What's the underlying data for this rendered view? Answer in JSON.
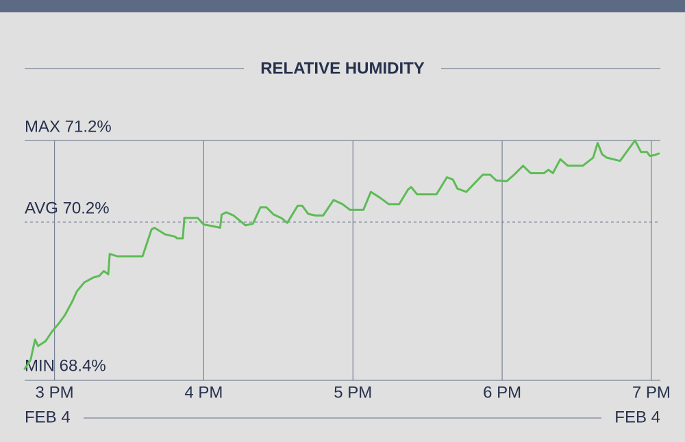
{
  "chart_data": {
    "type": "line",
    "title": "RELATIVE HUMIDITY",
    "x": [
      14.8,
      14.84,
      14.87,
      14.89,
      14.94,
      14.98,
      15.03,
      15.07,
      15.12,
      15.15,
      15.2,
      15.26,
      15.3,
      15.33,
      15.36,
      15.37,
      15.42,
      15.59,
      15.65,
      15.67,
      15.74,
      15.81,
      15.82,
      15.86,
      15.87,
      15.96,
      16.0,
      16.06,
      16.11,
      16.12,
      16.15,
      16.2,
      16.28,
      16.33,
      16.38,
      16.42,
      16.47,
      16.52,
      16.56,
      16.63,
      16.66,
      16.7,
      16.75,
      16.8,
      16.87,
      16.93,
      16.98,
      17.07,
      17.12,
      17.18,
      17.24,
      17.31,
      17.37,
      17.39,
      17.43,
      17.56,
      17.63,
      17.67,
      17.7,
      17.76,
      17.87,
      17.92,
      17.96,
      18.03,
      18.08,
      18.14,
      18.19,
      18.28,
      18.31,
      18.34,
      18.39,
      18.44,
      18.54,
      18.61,
      18.64,
      18.67,
      18.7,
      18.79,
      18.89,
      18.93,
      18.97,
      18.99,
      19.02,
      19.05
    ],
    "values": [
      68.4,
      68.51,
      68.76,
      68.68,
      68.74,
      68.85,
      68.96,
      69.06,
      69.23,
      69.35,
      69.46,
      69.52,
      69.54,
      69.6,
      69.56,
      69.81,
      69.78,
      69.78,
      70.11,
      70.13,
      70.05,
      70.02,
      70.0,
      70.0,
      70.25,
      70.25,
      70.17,
      70.15,
      70.13,
      70.29,
      70.32,
      70.28,
      70.16,
      70.18,
      70.38,
      70.38,
      70.29,
      70.25,
      70.19,
      70.4,
      70.4,
      70.3,
      70.28,
      70.28,
      70.47,
      70.42,
      70.35,
      70.35,
      70.57,
      70.5,
      70.42,
      70.42,
      70.6,
      70.63,
      70.54,
      70.54,
      70.75,
      70.72,
      70.61,
      70.57,
      70.78,
      70.78,
      70.71,
      70.7,
      70.78,
      70.89,
      70.8,
      70.8,
      70.84,
      70.8,
      70.97,
      70.89,
      70.89,
      70.99,
      71.17,
      71.03,
      70.99,
      70.95,
      71.2,
      71.06,
      71.06,
      71.01,
      71.02,
      71.04
    ],
    "color": "#5dbb55",
    "xlim": [
      14.8,
      19.06
    ],
    "ylim": [
      68.26,
      71.2
    ],
    "xticks": [
      {
        "value": 15,
        "label": "3 PM"
      },
      {
        "value": 16,
        "label": "4 PM"
      },
      {
        "value": 17,
        "label": "5 PM"
      },
      {
        "value": 18,
        "label": "6 PM"
      },
      {
        "value": 19,
        "label": "7 PM"
      }
    ],
    "grid": true,
    "reference_lines": [
      {
        "value": 71.2,
        "label": "MAX 71.2%",
        "style": "solid"
      },
      {
        "value": 70.2,
        "label": "AVG 70.2%",
        "style": "dashed"
      },
      {
        "value": 68.4,
        "label": "MIN 68.4%",
        "style": "none"
      }
    ],
    "date_labels": [
      "FEB 4",
      "FEB 4"
    ]
  }
}
